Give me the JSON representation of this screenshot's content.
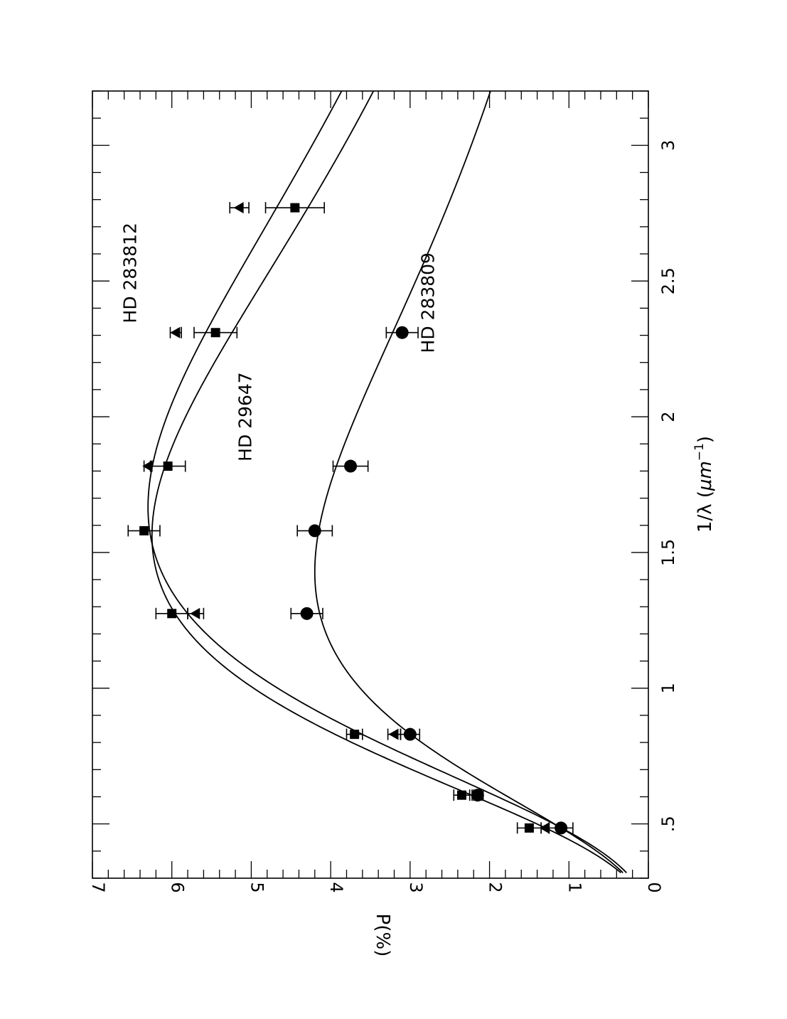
{
  "chart_data": {
    "type": "scatter",
    "orientation": "rotated-90-ccw",
    "xlabel_main": "1/λ (",
    "xlabel_unit": "μm",
    "xlabel_exp": "−1",
    "xlabel_close": ")",
    "ylabel": "P(%)",
    "xlim": [
      0.3,
      3.2
    ],
    "ylim": [
      0,
      7
    ],
    "x_ticks": [
      0.5,
      1,
      1.5,
      2,
      2.5,
      3
    ],
    "x_tick_labels": [
      ".5",
      "1",
      "1.5",
      "2",
      "2.5",
      "3"
    ],
    "y_ticks": [
      0,
      1,
      2,
      3,
      4,
      5,
      6,
      7
    ],
    "y_tick_labels": [
      "0",
      "1",
      "2",
      "3",
      "4",
      "5",
      "6",
      "7"
    ],
    "grid": false,
    "series": [
      {
        "name": "HD 283812",
        "marker": "triangle",
        "pmax": 6.3,
        "lmax": 0.6,
        "x": [
          0.485,
          0.606,
          0.83,
          1.275,
          1.818,
          2.31,
          2.77
        ],
        "y": [
          1.3,
          2.15,
          3.2,
          5.7,
          6.3,
          5.95,
          5.15
        ],
        "err": [
          0.05,
          0.05,
          0.08,
          0.1,
          0.05,
          0.07,
          0.12
        ]
      },
      {
        "name": "HD 29647",
        "marker": "square",
        "pmax": 6.25,
        "lmax": 0.64,
        "x": [
          0.485,
          0.606,
          0.83,
          1.275,
          1.58,
          1.818,
          2.31,
          2.77
        ],
        "y": [
          1.5,
          2.35,
          3.7,
          6.0,
          6.35,
          6.05,
          5.45,
          4.45
        ],
        "err": [
          0.15,
          0.1,
          0.1,
          0.2,
          0.2,
          0.22,
          0.27,
          0.37
        ]
      },
      {
        "name": "HD 283809",
        "marker": "circle",
        "pmax": 4.2,
        "lmax": 0.7,
        "x": [
          0.485,
          0.606,
          0.83,
          1.275,
          1.58,
          1.818,
          2.31
        ],
        "y": [
          1.1,
          2.15,
          3.0,
          4.3,
          4.2,
          3.75,
          3.1
        ],
        "err": [
          0.15,
          0.07,
          0.12,
          0.2,
          0.22,
          0.22,
          0.2
        ]
      }
    ],
    "annotations": [
      {
        "text": "HD 283812",
        "x": 2.53,
        "y": 6.45
      },
      {
        "text": "HD 29647",
        "x": 2.0,
        "y": 5.0
      },
      {
        "text": "HD 283809",
        "x": 2.42,
        "y": 2.7
      }
    ]
  }
}
